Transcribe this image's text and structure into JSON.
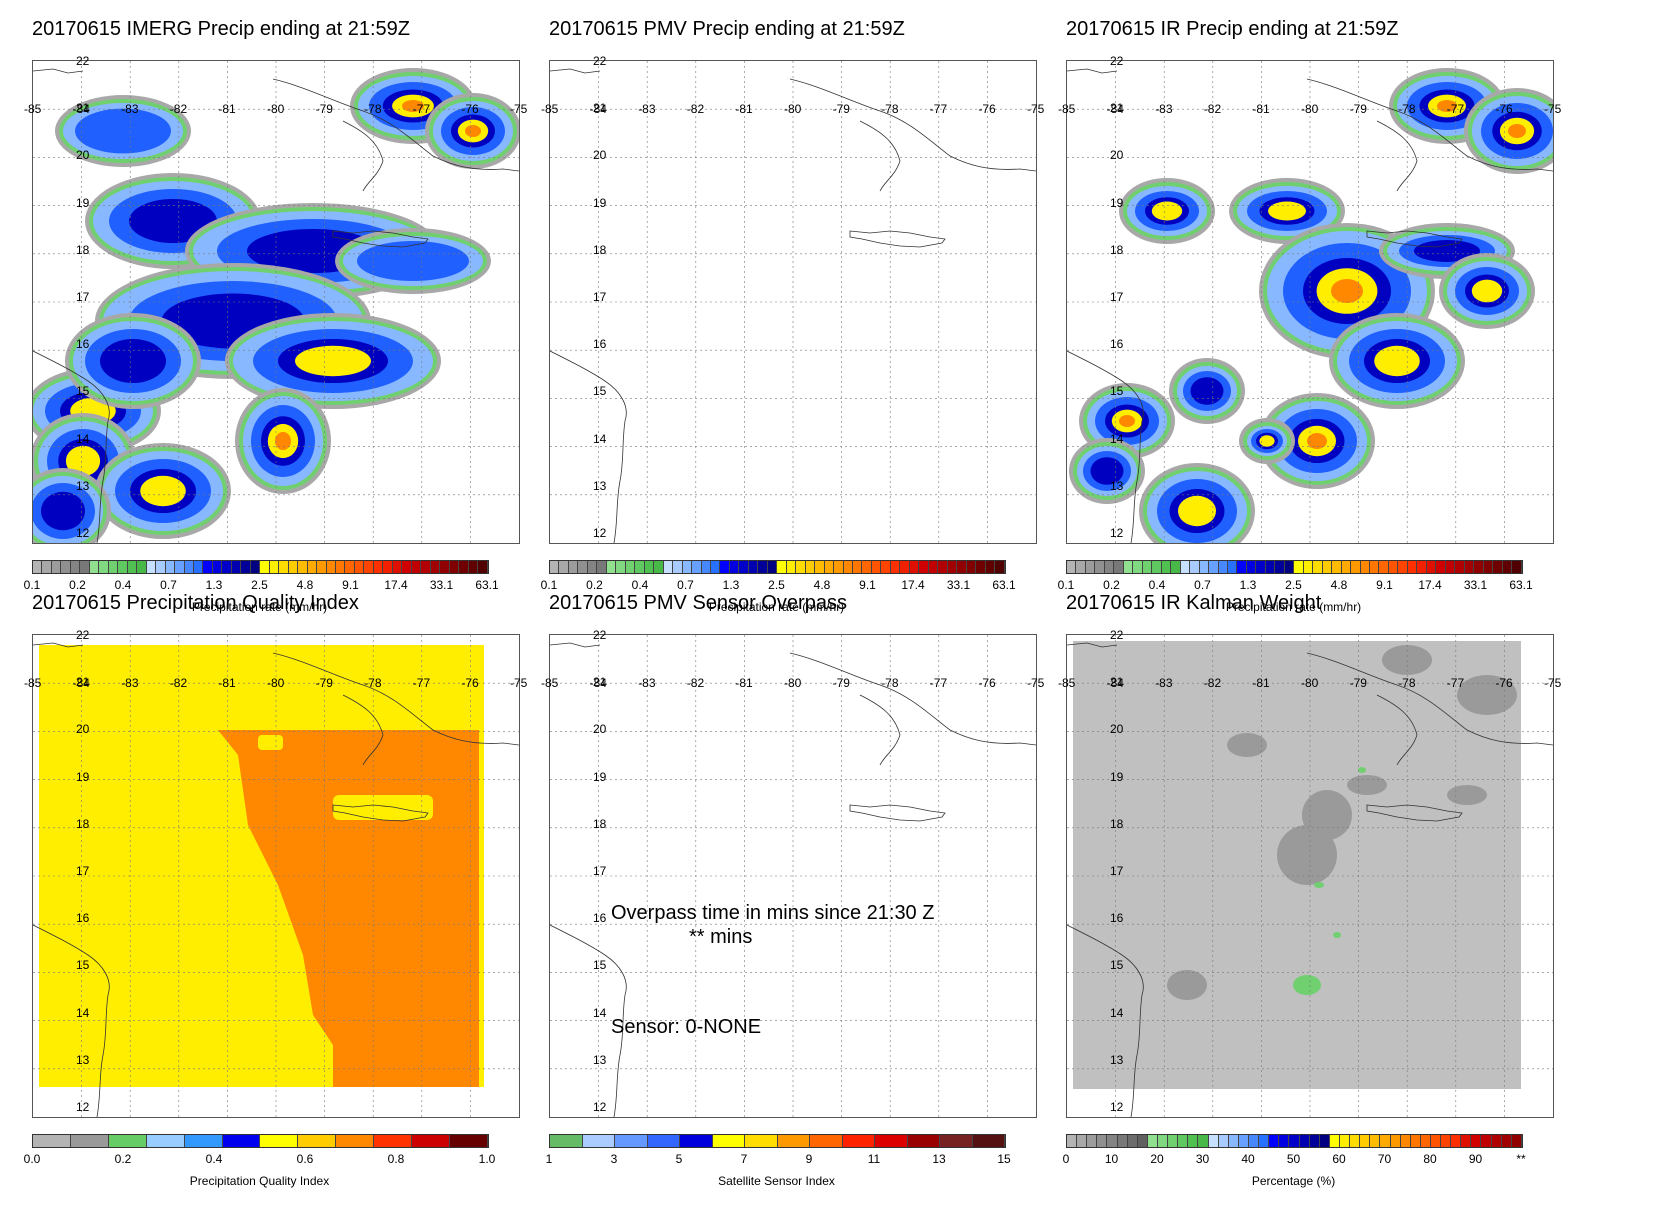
{
  "panels": [
    {
      "title": "20170615 IMERG Precip ending at 21:59Z",
      "type": "precip",
      "cbar_title": "Precipitation rate (mm/hr)"
    },
    {
      "title": "20170615 PMV Precip ending at 21:59Z",
      "type": "empty",
      "cbar_title": "Precipitation rate (mm/hr)"
    },
    {
      "title": "20170615 IR Precip ending at 21:59Z",
      "type": "ir",
      "cbar_title": "Precipitation rate (mm/hr)"
    },
    {
      "title": "20170615 Precipitation Quality Index",
      "type": "quality",
      "cbar_title": "Precipitation Quality Index"
    },
    {
      "title": "20170615 PMV Sensor Overpass",
      "type": "overpass",
      "cbar_title": "Satellite Sensor Index"
    },
    {
      "title": "20170615 IR Kalman Weight",
      "type": "kalman",
      "cbar_title": "Percentage (%)"
    }
  ],
  "axes": {
    "lon_labels": [
      "-85",
      "-84",
      "-83",
      "-82",
      "-81",
      "-80",
      "-79",
      "-78",
      "-77",
      "-76",
      "-75"
    ],
    "lat_labels": [
      "22",
      "21",
      "20",
      "19",
      "18",
      "17",
      "16",
      "15",
      "14",
      "13",
      "12"
    ]
  },
  "colorbars": {
    "precip": {
      "labels": [
        "0.1",
        "0.2",
        "0.4",
        "0.7",
        "1.3",
        "2.5",
        "4.8",
        "9.1",
        "17.4",
        "33.1",
        "63.1"
      ],
      "colors": [
        "#b4b4b4",
        "#a8a8a8",
        "#9c9c9c",
        "#909090",
        "#848484",
        "#787878",
        "#90e090",
        "#80d880",
        "#70d070",
        "#60c860",
        "#50c050",
        "#48b848",
        "#c8e0ff",
        "#a8ccff",
        "#88b8ff",
        "#68a0ff",
        "#4888ff",
        "#2870ff",
        "#0000ff",
        "#0000e0",
        "#0000c8",
        "#0000b0",
        "#000098",
        "#000080",
        "#ffff00",
        "#ffee00",
        "#ffdd00",
        "#ffcc00",
        "#ffbb00",
        "#ffaa00",
        "#ff9900",
        "#ff8800",
        "#ff7700",
        "#ff6600",
        "#ff5500",
        "#ff4400",
        "#ff3000",
        "#f02000",
        "#e01000",
        "#d00000",
        "#c00000",
        "#b00000",
        "#a00000",
        "#900000",
        "#800000",
        "#700000",
        "#600000",
        "#500000"
      ]
    },
    "quality": {
      "labels": [
        "0.0",
        "0.2",
        "0.4",
        "0.6",
        "0.8",
        "1.0"
      ],
      "colors": [
        "#b4b4b4",
        "#999999",
        "#66cc66",
        "#99ccff",
        "#3399ff",
        "#0000ee",
        "#ffff00",
        "#ffcc00",
        "#ff8800",
        "#ff3300",
        "#cc0000",
        "#660000"
      ]
    },
    "sensor": {
      "labels": [
        "1",
        "3",
        "5",
        "7",
        "9",
        "11",
        "13",
        "15"
      ],
      "colors": [
        "#66bb66",
        "#aaccff",
        "#6699ff",
        "#3366ff",
        "#0000dd",
        "#ffff00",
        "#ffdd00",
        "#ff9900",
        "#ff6600",
        "#ff2200",
        "#dd0000",
        "#990000",
        "#772222",
        "#551111"
      ]
    },
    "kalman": {
      "labels": [
        "0",
        "10",
        "20",
        "30",
        "40",
        "50",
        "60",
        "70",
        "80",
        "90",
        "**"
      ],
      "colors": [
        "#b4b4b4",
        "#a8a8a8",
        "#9c9c9c",
        "#909090",
        "#848484",
        "#787878",
        "#6c6c6c",
        "#606060",
        "#90e090",
        "#80d880",
        "#70d070",
        "#60c860",
        "#50c050",
        "#48b848",
        "#c8e0ff",
        "#a8ccff",
        "#88b8ff",
        "#68a0ff",
        "#4888ff",
        "#2870ff",
        "#0000ff",
        "#0000e0",
        "#0000c8",
        "#0000b0",
        "#000098",
        "#000080",
        "#ffff00",
        "#ffee00",
        "#ffdd00",
        "#ffcc00",
        "#ffbb00",
        "#ffaa00",
        "#ff9900",
        "#ff8800",
        "#ff7700",
        "#ff6600",
        "#ff5500",
        "#ff4400",
        "#ff3000",
        "#e01000",
        "#d00000",
        "#c00000",
        "#b00000",
        "#a00000",
        "#900000"
      ]
    }
  },
  "overpass": {
    "line1": "Overpass time in mins since 21:30 Z",
    "line2": "** mins",
    "sensor": "Sensor:   0-NONE"
  }
}
